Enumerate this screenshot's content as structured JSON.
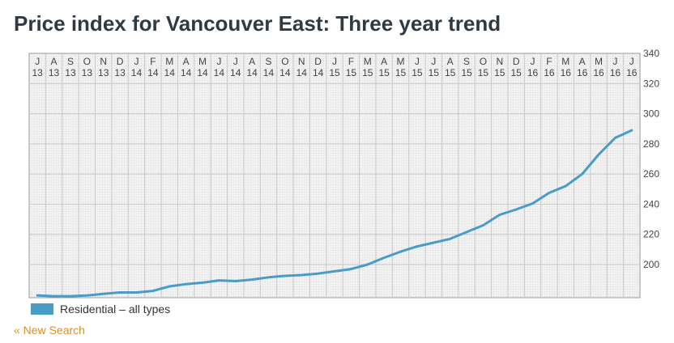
{
  "title": "Price index for Vancouver East: Three year trend",
  "new_search_label": "« New Search",
  "chart_data": {
    "type": "line",
    "title": "",
    "xlabel": "",
    "ylabel": "",
    "ylim": [
      178,
      340
    ],
    "yticks": [
      200,
      220,
      240,
      260,
      280,
      300,
      320,
      340
    ],
    "grid": true,
    "legend_position": "bottom-left",
    "months": [
      "J",
      "A",
      "S",
      "O",
      "N",
      "D",
      "J",
      "F",
      "M",
      "A",
      "M",
      "J",
      "J",
      "A",
      "S",
      "O",
      "N",
      "D",
      "J",
      "F",
      "M",
      "A",
      "M",
      "J",
      "J",
      "A",
      "S",
      "O",
      "N",
      "D",
      "J",
      "F",
      "M",
      "A",
      "M",
      "J",
      "J"
    ],
    "years": [
      "13",
      "13",
      "13",
      "13",
      "13",
      "13",
      "14",
      "14",
      "14",
      "14",
      "14",
      "14",
      "14",
      "14",
      "14",
      "14",
      "14",
      "14",
      "15",
      "15",
      "15",
      "15",
      "15",
      "15",
      "15",
      "15",
      "15",
      "15",
      "15",
      "15",
      "16",
      "16",
      "16",
      "16",
      "16",
      "16",
      "16"
    ],
    "series": [
      {
        "name": "Residential – all types",
        "color": "#4a9cc8",
        "values": [
          179.5,
          179,
          179,
          179.5,
          180.5,
          181.5,
          181.5,
          182.5,
          185.5,
          187,
          188,
          189.5,
          189,
          190,
          191.5,
          192.5,
          193,
          194,
          195.5,
          197,
          200,
          204.5,
          208.5,
          212,
          214.5,
          217,
          221.5,
          226,
          233,
          236.5,
          240.5,
          247.5,
          252,
          260,
          273,
          284,
          289
        ]
      }
    ]
  }
}
